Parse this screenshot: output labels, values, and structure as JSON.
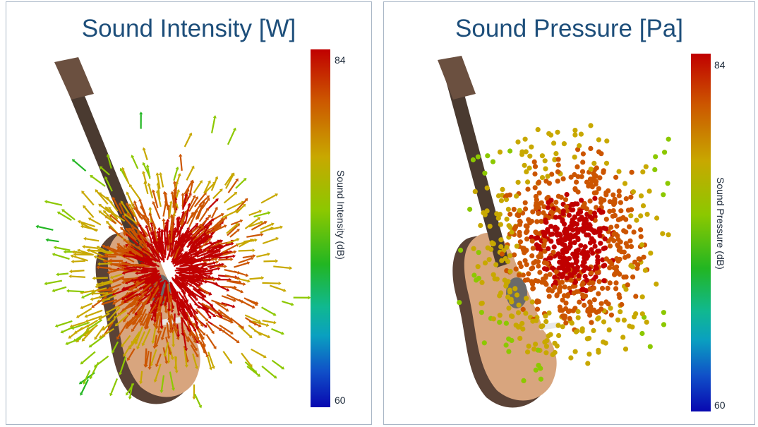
{
  "left_panel": {
    "title": "Sound Intensity [W]",
    "colorbar": {
      "max_label": "84",
      "min_label": "60",
      "title": "Sound Intensity  (dB)",
      "range": [
        60,
        84
      ]
    }
  },
  "right_panel": {
    "title": "Sound Pressure [Pa]",
    "colorbar": {
      "max_label": "84",
      "min_label": "60",
      "title": "Sound Pressure  (dB)",
      "range": [
        60,
        84
      ]
    }
  },
  "colors": {
    "title": "#1d4e7a",
    "border": "#a9b6c6",
    "guitar_body": "#d8a57e",
    "guitar_side": "#5a4236",
    "guitar_neck": "#4a3a30"
  },
  "colormap": [
    "#0808b0",
    "#1050c8",
    "#0aa0c0",
    "#10b890",
    "#22b622",
    "#8cc800",
    "#c8a800",
    "#cc5500",
    "#c00000"
  ]
}
